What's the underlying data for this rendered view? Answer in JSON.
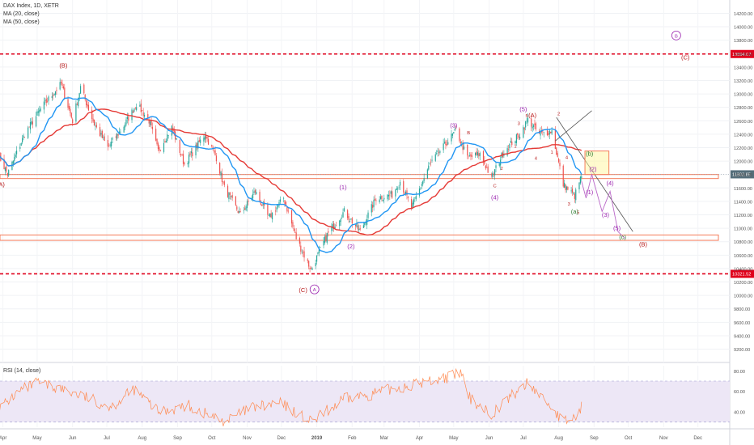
{
  "legend": {
    "symbol": "DAX Index, 1D, XETR",
    "ma20": "MA (20, close)",
    "ma50": "MA (50, close)"
  },
  "rsi_label": "RSI (14, close)",
  "colors": {
    "up": "#26a69a",
    "down": "#ef5350",
    "ma20": "#2196f3",
    "ma50": "#e53935",
    "level": "#e0001b",
    "zone": "#f57c5b",
    "wave_purple": "#9c27b0",
    "wave_dark": "#b71c1c",
    "wave_green": "#2e7d32",
    "rsi": "#ff8a50",
    "rsi_band": "#ede7f6",
    "price_tag": "#546e7a"
  },
  "chart_data": {
    "type": "candlestick",
    "title": "DAX Index, 1D, XETR",
    "x_axis": {
      "start": "2018-03-28",
      "end": "2019-12-31",
      "ticks": [
        {
          "label": "Apr",
          "date": "2018-04-01"
        },
        {
          "label": "May",
          "date": "2018-05-01"
        },
        {
          "label": "Jun",
          "date": "2018-06-01"
        },
        {
          "label": "Jul",
          "date": "2018-07-01"
        },
        {
          "label": "Aug",
          "date": "2018-08-01"
        },
        {
          "label": "Sep",
          "date": "2018-09-01"
        },
        {
          "label": "Oct",
          "date": "2018-10-01"
        },
        {
          "label": "Nov",
          "date": "2018-11-01"
        },
        {
          "label": "Dec",
          "date": "2018-12-01"
        },
        {
          "label": "2019",
          "date": "2019-01-01"
        },
        {
          "label": "Feb",
          "date": "2019-02-01"
        },
        {
          "label": "Mar",
          "date": "2019-03-01"
        },
        {
          "label": "Apr",
          "date": "2019-04-01"
        },
        {
          "label": "May",
          "date": "2019-05-01"
        },
        {
          "label": "Jun",
          "date": "2019-06-01"
        },
        {
          "label": "Jul",
          "date": "2019-07-01"
        },
        {
          "label": "Aug",
          "date": "2019-08-01"
        },
        {
          "label": "Sep",
          "date": "2019-09-01"
        },
        {
          "label": "Oct",
          "date": "2019-10-01"
        },
        {
          "label": "Nov",
          "date": "2019-11-01"
        },
        {
          "label": "Dec",
          "date": "2019-12-01"
        }
      ]
    },
    "y_axis": {
      "min": 9050,
      "max": 14350,
      "ticks": [
        "14200.00",
        "14000.00",
        "13800.00",
        "13600.00",
        "13400.00",
        "13200.00",
        "13000.00",
        "12800.00",
        "12600.00",
        "12400.00",
        "12200.00",
        "12000.00",
        "11800.00",
        "11600.00",
        "11400.00",
        "11200.00",
        "11000.00",
        "10800.00",
        "10600.00",
        "10400.00",
        "10200.00",
        "10000.00",
        "9800.00",
        "9600.00",
        "9400.00",
        "9200.00"
      ]
    },
    "price_path": [
      {
        "date": "2018-03-28",
        "close": 12100
      },
      {
        "date": "2018-04-05",
        "close": 11800
      },
      {
        "date": "2018-04-20",
        "close": 12400
      },
      {
        "date": "2018-05-05",
        "close": 12800
      },
      {
        "date": "2018-05-22",
        "close": 13150
      },
      {
        "date": "2018-06-01",
        "close": 12600
      },
      {
        "date": "2018-06-08",
        "close": 13100
      },
      {
        "date": "2018-06-20",
        "close": 12550
      },
      {
        "date": "2018-07-02",
        "close": 12200
      },
      {
        "date": "2018-07-15",
        "close": 12500
      },
      {
        "date": "2018-07-27",
        "close": 12850
      },
      {
        "date": "2018-08-07",
        "close": 12600
      },
      {
        "date": "2018-08-15",
        "close": 12150
      },
      {
        "date": "2018-08-27",
        "close": 12500
      },
      {
        "date": "2018-09-07",
        "close": 11950
      },
      {
        "date": "2018-09-25",
        "close": 12400
      },
      {
        "date": "2018-10-05",
        "close": 12050
      },
      {
        "date": "2018-10-12",
        "close": 11600
      },
      {
        "date": "2018-10-26",
        "close": 11200
      },
      {
        "date": "2018-11-08",
        "close": 11550
      },
      {
        "date": "2018-11-20",
        "close": 11150
      },
      {
        "date": "2018-12-03",
        "close": 11450
      },
      {
        "date": "2018-12-14",
        "close": 10850
      },
      {
        "date": "2018-12-27",
        "close": 10380
      },
      {
        "date": "2019-01-10",
        "close": 10900
      },
      {
        "date": "2019-01-25",
        "close": 11250
      },
      {
        "date": "2019-02-08",
        "close": 10950
      },
      {
        "date": "2019-02-22",
        "close": 11450
      },
      {
        "date": "2019-03-08",
        "close": 11500
      },
      {
        "date": "2019-03-15",
        "close": 11700
      },
      {
        "date": "2019-03-25",
        "close": 11300
      },
      {
        "date": "2019-04-10",
        "close": 11950
      },
      {
        "date": "2019-04-26",
        "close": 12300
      },
      {
        "date": "2019-05-03",
        "close": 12450
      },
      {
        "date": "2019-05-13",
        "close": 12050
      },
      {
        "date": "2019-05-24",
        "close": 12100
      },
      {
        "date": "2019-06-03",
        "close": 11750
      },
      {
        "date": "2019-06-14",
        "close": 12150
      },
      {
        "date": "2019-06-28",
        "close": 12400
      },
      {
        "date": "2019-07-05",
        "close": 12620
      },
      {
        "date": "2019-07-15",
        "close": 12400
      },
      {
        "date": "2019-07-26",
        "close": 12450
      },
      {
        "date": "2019-08-05",
        "close": 11650
      },
      {
        "date": "2019-08-15",
        "close": 11480
      },
      {
        "date": "2019-08-21",
        "close": 11780
      }
    ],
    "rsi": [
      {
        "date": "2018-03-28",
        "value": 42
      },
      {
        "date": "2018-04-15",
        "value": 60
      },
      {
        "date": "2018-05-01",
        "value": 68
      },
      {
        "date": "2018-05-20",
        "value": 63
      },
      {
        "date": "2018-06-10",
        "value": 55
      },
      {
        "date": "2018-07-05",
        "value": 45
      },
      {
        "date": "2018-07-25",
        "value": 62
      },
      {
        "date": "2018-08-15",
        "value": 40
      },
      {
        "date": "2018-09-10",
        "value": 46
      },
      {
        "date": "2018-10-12",
        "value": 30
      },
      {
        "date": "2018-11-05",
        "value": 44
      },
      {
        "date": "2018-12-01",
        "value": 48
      },
      {
        "date": "2018-12-27",
        "value": 30
      },
      {
        "date": "2019-01-25",
        "value": 52
      },
      {
        "date": "2019-02-20",
        "value": 58
      },
      {
        "date": "2019-03-15",
        "value": 64
      },
      {
        "date": "2019-04-10",
        "value": 70
      },
      {
        "date": "2019-04-30",
        "value": 75
      },
      {
        "date": "2019-05-08",
        "value": 78
      },
      {
        "date": "2019-05-13",
        "value": 55
      },
      {
        "date": "2019-06-03",
        "value": 38
      },
      {
        "date": "2019-06-25",
        "value": 60
      },
      {
        "date": "2019-07-05",
        "value": 68
      },
      {
        "date": "2019-07-20",
        "value": 52
      },
      {
        "date": "2019-08-05",
        "value": 30
      },
      {
        "date": "2019-08-15",
        "value": 34
      },
      {
        "date": "2019-08-21",
        "value": 45
      }
    ],
    "rsi_axis": {
      "min": 25,
      "max": 85,
      "ticks": [
        "80.00",
        "60.00",
        "40.00",
        "20.00"
      ],
      "band": [
        30,
        70
      ]
    },
    "levels": [
      {
        "label": "13594.07",
        "value": 13594.07
      },
      {
        "label": "10321.52",
        "value": 10321.52
      }
    ],
    "current_price": {
      "label": "11802.85",
      "value": 11802.85
    },
    "zones": [
      {
        "from": 11740,
        "to": 11800
      },
      {
        "from": 10820,
        "to": 10900
      }
    ],
    "wave_labels": [
      {
        "text": "(A)",
        "date": "2018-03-30",
        "price": 11620,
        "color": "wave_dark"
      },
      {
        "text": "(B)",
        "date": "2018-05-24",
        "price": 13390,
        "color": "wave_dark"
      },
      {
        "text": "(C)",
        "date": "2018-12-20",
        "price": 10050,
        "color": "wave_dark"
      },
      {
        "text": "A",
        "date": "2018-12-30",
        "price": 10060,
        "color": "wave_purple",
        "circled": true
      },
      {
        "text": "(1)",
        "date": "2019-01-24",
        "price": 11580,
        "color": "wave_purple"
      },
      {
        "text": "(2)",
        "date": "2019-01-31",
        "price": 10700,
        "color": "wave_purple"
      },
      {
        "text": "(3)",
        "date": "2019-05-01",
        "price": 12500,
        "color": "wave_purple"
      },
      {
        "text": "(4)",
        "date": "2019-06-06",
        "price": 11430,
        "color": "wave_purple"
      },
      {
        "text": "(5)",
        "date": "2019-07-01",
        "price": 12740,
        "color": "wave_purple"
      },
      {
        "text": "5",
        "date": "2019-07-04",
        "price": 12650,
        "color": "wave_dark"
      },
      {
        "text": "(A)",
        "date": "2019-07-09",
        "price": 12650,
        "color": "wave_dark"
      },
      {
        "text": "3",
        "date": "2019-06-27",
        "price": 12540,
        "color": "wave_dark"
      },
      {
        "text": "B",
        "date": "2019-05-14",
        "price": 12400,
        "color": "wave_dark"
      },
      {
        "text": "1",
        "date": "2019-06-24",
        "price": 12200,
        "color": "wave_dark"
      },
      {
        "text": "2",
        "date": "2019-06-12",
        "price": 11870,
        "color": "wave_dark"
      },
      {
        "text": "4",
        "date": "2019-07-12",
        "price": 12020,
        "color": "wave_dark"
      },
      {
        "text": "C",
        "date": "2019-06-06",
        "price": 11610,
        "color": "wave_dark"
      },
      {
        "text": "2",
        "date": "2019-08-01",
        "price": 12680,
        "color": "wave_dark"
      },
      {
        "text": "1",
        "date": "2019-07-26",
        "price": 12110,
        "color": "wave_dark"
      },
      {
        "text": "4",
        "date": "2019-08-08",
        "price": 12030,
        "color": "wave_dark"
      },
      {
        "text": "3",
        "date": "2019-08-10",
        "price": 11340,
        "color": "wave_dark"
      },
      {
        "text": "5",
        "date": "2019-08-18",
        "price": 11210,
        "color": "wave_dark"
      },
      {
        "text": "(a)",
        "date": "2019-08-15",
        "price": 11220,
        "color": "wave_green"
      },
      {
        "text": "(b)",
        "date": "2019-08-28",
        "price": 12080,
        "color": "wave_green"
      },
      {
        "text": "(c)",
        "date": "2019-09-26",
        "price": 10840,
        "color": "wave_green"
      },
      {
        "text": "(1)",
        "date": "2019-08-28",
        "price": 11510,
        "color": "wave_purple"
      },
      {
        "text": "(2)",
        "date": "2019-08-31",
        "price": 11850,
        "color": "wave_purple"
      },
      {
        "text": "(3)",
        "date": "2019-09-11",
        "price": 11170,
        "color": "wave_purple"
      },
      {
        "text": "(4)",
        "date": "2019-09-15",
        "price": 11640,
        "color": "wave_purple"
      },
      {
        "text": "(5)",
        "date": "2019-09-21",
        "price": 10970,
        "color": "wave_purple"
      },
      {
        "text": "(B)",
        "date": "2019-10-14",
        "price": 10730,
        "color": "wave_dark"
      },
      {
        "text": "B",
        "date": "2019-11-12",
        "price": 13840,
        "color": "wave_purple",
        "circled": true
      },
      {
        "text": "(C)",
        "date": "2019-11-20",
        "price": 13510,
        "color": "wave_dark"
      }
    ],
    "projection": [
      {
        "date": "2019-08-21",
        "price": 11700
      },
      {
        "date": "2019-08-25",
        "price": 11450
      },
      {
        "date": "2019-08-30",
        "price": 11800
      },
      {
        "date": "2019-09-08",
        "price": 11250
      },
      {
        "date": "2019-09-15",
        "price": 11550
      },
      {
        "date": "2019-09-22",
        "price": 10950
      },
      {
        "date": "2019-09-28",
        "price": 10850
      }
    ],
    "trendlines": [
      {
        "from": {
          "date": "2019-07-30",
          "price": 12650
        },
        "to": {
          "date": "2019-10-05",
          "price": 10950
        }
      },
      {
        "from": {
          "date": "2019-07-29",
          "price": 12300
        },
        "to": {
          "date": "2019-08-30",
          "price": 12750
        }
      }
    ],
    "boxes": [
      {
        "from_date": "2019-08-24",
        "to_date": "2019-09-14",
        "from_price": 11800,
        "to_price": 12150
      }
    ]
  }
}
